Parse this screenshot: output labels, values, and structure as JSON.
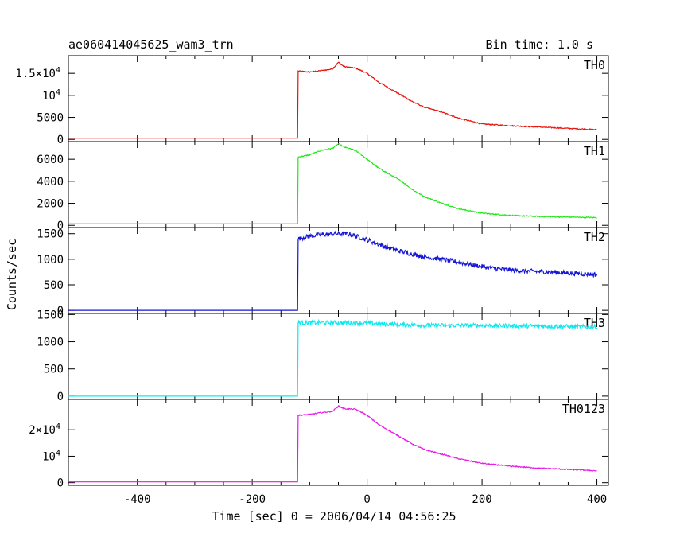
{
  "chart_data": {
    "type": "line",
    "title": "ae060414045625_wam3_trn",
    "subtitle": "Bin time: 1.0 s",
    "xlabel": "Time [sec] 0 = 2006/04/14 04:56:25",
    "ylabel": "Counts/sec",
    "xlim": [
      -520,
      420
    ],
    "x_ticks": [
      -400,
      -200,
      0,
      200,
      400
    ],
    "grid": false,
    "panels": [
      {
        "name": "TH0",
        "color": "#e8120c",
        "ylim": [
          -500,
          19000
        ],
        "y_ticks": [
          {
            "v": 0,
            "t": "0"
          },
          {
            "v": 5000,
            "t": "5000"
          },
          {
            "v": 10000,
            "t": "10",
            "sup": "4"
          },
          {
            "v": 15000,
            "t": "1.5×10",
            "sup": "4"
          }
        ],
        "points": [
          [
            -520,
            300
          ],
          [
            -121,
            300
          ],
          [
            -120,
            15500
          ],
          [
            -100,
            15300
          ],
          [
            -80,
            15600
          ],
          [
            -60,
            16000
          ],
          [
            -50,
            17500
          ],
          [
            -40,
            16500
          ],
          [
            -20,
            16200
          ],
          [
            0,
            15000
          ],
          [
            20,
            13000
          ],
          [
            40,
            11500
          ],
          [
            60,
            10000
          ],
          [
            80,
            8500
          ],
          [
            100,
            7300
          ],
          [
            130,
            6200
          ],
          [
            160,
            4800
          ],
          [
            200,
            3500
          ],
          [
            250,
            3100
          ],
          [
            300,
            2800
          ],
          [
            350,
            2500
          ],
          [
            400,
            2200
          ]
        ]
      },
      {
        "name": "TH1",
        "color": "#1ee818",
        "ylim": [
          -200,
          7600
        ],
        "y_ticks": [
          {
            "v": 0,
            "t": "0"
          },
          {
            "v": 2000,
            "t": "2000"
          },
          {
            "v": 4000,
            "t": "4000"
          },
          {
            "v": 6000,
            "t": "6000"
          }
        ],
        "points": [
          [
            -520,
            150
          ],
          [
            -121,
            150
          ],
          [
            -120,
            6200
          ],
          [
            -100,
            6400
          ],
          [
            -80,
            6800
          ],
          [
            -60,
            7000
          ],
          [
            -50,
            7400
          ],
          [
            -40,
            7100
          ],
          [
            -20,
            6800
          ],
          [
            0,
            6000
          ],
          [
            20,
            5200
          ],
          [
            40,
            4600
          ],
          [
            60,
            4000
          ],
          [
            80,
            3200
          ],
          [
            100,
            2600
          ],
          [
            130,
            2000
          ],
          [
            160,
            1500
          ],
          [
            200,
            1100
          ],
          [
            250,
            900
          ],
          [
            300,
            800
          ],
          [
            350,
            750
          ],
          [
            400,
            700
          ]
        ]
      },
      {
        "name": "TH2",
        "color": "#1616d8",
        "ylim": [
          -60,
          1620
        ],
        "y_ticks": [
          {
            "v": 0,
            "t": "0"
          },
          {
            "v": 500,
            "t": "500"
          },
          {
            "v": 1000,
            "t": "1000"
          },
          {
            "v": 1500,
            "t": "1500"
          }
        ],
        "points": [
          [
            -520,
            0
          ],
          [
            -121,
            0
          ],
          [
            -120,
            1400
          ],
          [
            -100,
            1450
          ],
          [
            -80,
            1480
          ],
          [
            -50,
            1500
          ],
          [
            -30,
            1490
          ],
          [
            0,
            1380
          ],
          [
            30,
            1250
          ],
          [
            60,
            1150
          ],
          [
            100,
            1050
          ],
          [
            140,
            980
          ],
          [
            180,
            900
          ],
          [
            220,
            820
          ],
          [
            260,
            780
          ],
          [
            300,
            760
          ],
          [
            350,
            730
          ],
          [
            400,
            700
          ]
        ],
        "noise": 45
      },
      {
        "name": "TH3",
        "color": "#10e8f0",
        "ylim": [
          -60,
          1520
        ],
        "y_ticks": [
          {
            "v": 0,
            "t": "0"
          },
          {
            "v": 500,
            "t": "500"
          },
          {
            "v": 1000,
            "t": "1000"
          },
          {
            "v": 1500,
            "t": "1500"
          }
        ],
        "points": [
          [
            -520,
            0
          ],
          [
            -121,
            0
          ],
          [
            -120,
            1350
          ],
          [
            -50,
            1350
          ],
          [
            0,
            1340
          ],
          [
            100,
            1300
          ],
          [
            200,
            1300
          ],
          [
            300,
            1290
          ],
          [
            400,
            1270
          ]
        ],
        "noise": 40
      },
      {
        "name": "TH0123",
        "color": "#e818e8",
        "ylim": [
          -1000,
          31500
        ],
        "y_ticks": [
          {
            "v": 0,
            "t": "0"
          },
          {
            "v": 10000,
            "t": "10",
            "sup": "4"
          },
          {
            "v": 20000,
            "t": "2×10",
            "sup": "4"
          }
        ],
        "points": [
          [
            -520,
            300
          ],
          [
            -121,
            300
          ],
          [
            -120,
            25500
          ],
          [
            -100,
            25800
          ],
          [
            -80,
            26500
          ],
          [
            -60,
            27000
          ],
          [
            -50,
            29000
          ],
          [
            -40,
            28000
          ],
          [
            -20,
            27800
          ],
          [
            0,
            25500
          ],
          [
            20,
            22000
          ],
          [
            40,
            19500
          ],
          [
            60,
            17000
          ],
          [
            80,
            14500
          ],
          [
            100,
            12500
          ],
          [
            130,
            10800
          ],
          [
            160,
            9000
          ],
          [
            200,
            7300
          ],
          [
            250,
            6200
          ],
          [
            300,
            5500
          ],
          [
            350,
            5000
          ],
          [
            400,
            4500
          ]
        ]
      }
    ]
  }
}
